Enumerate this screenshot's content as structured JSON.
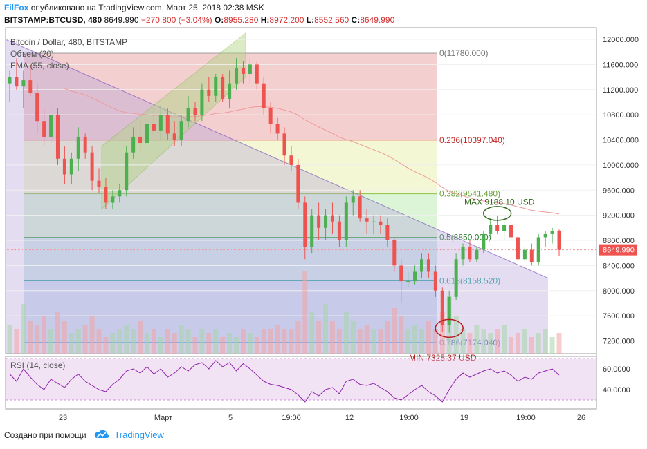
{
  "header": {
    "brand": "FilFox",
    "published": "опубликовано на TradingView.com, Март 25, 2018 02:38 MSK",
    "symbol": "BITSTAMP:BTCUSD, 480",
    "last": "8649.990",
    "change": "−270.800 (−3.04%)",
    "o_label": "O:",
    "o_value": "8955.280",
    "h_label": "H:",
    "h_value": "8972.200",
    "l_label": "L:",
    "l_value": "8552.560",
    "c_label": "C:",
    "c_value": "8649.990"
  },
  "legend": {
    "title": "Bitcoin / Dollar, 480, BITSTAMP",
    "volume": "Объем (20)",
    "ema": "EMA (55, close)",
    "rsi": "RSI (14, close)"
  },
  "footer": {
    "created_with": "Создано при помощи",
    "brand": "TradingView"
  },
  "colors": {
    "up": "#26a69a",
    "up_candle": "#4caf50",
    "down": "#ef5350",
    "accent": "#2196f3",
    "price_tag": "#ef5350"
  },
  "chart_data": {
    "type": "candlestick",
    "price_axis": {
      "ticks": [
        7200,
        7600,
        8000,
        8400,
        8800,
        9200,
        9600,
        10000,
        10400,
        10800,
        11200,
        11600,
        12000
      ],
      "tick_labels": [
        "7200.000",
        "7600.000",
        "8000.000",
        "8400.000",
        "8800.000",
        "9200.000",
        "9600.000",
        "10000.000",
        "10400.000",
        "10800.000",
        "11200.000",
        "11600.000",
        "12000.000"
      ],
      "ylim": [
        7000,
        12200
      ],
      "current_price": 8649.99,
      "current_price_label": "8649.990"
    },
    "time_axis": {
      "tick_labels": [
        "23",
        "Март",
        "5",
        "19:00",
        "12",
        "19:00",
        "19",
        "19:00",
        "26"
      ]
    },
    "rsi_axis": {
      "tick_labels": [
        "60.0000",
        "40.0000"
      ],
      "band": [
        30,
        70
      ]
    },
    "fibonacci": [
      {
        "label": "0(11780.000)",
        "price": 11780
      },
      {
        "label": "0.236(10397.040)",
        "price": 10397.04
      },
      {
        "label": "0.382(9541.480)",
        "price": 9541.48
      },
      {
        "label": "0.5(8850.000)",
        "price": 8850
      },
      {
        "label": "0.618(8158.520)",
        "price": 8158.52
      },
      {
        "label": "0.786(7174.040)",
        "price": 7174.04
      }
    ],
    "annotations": [
      {
        "text": "MAX 9188.10 USD",
        "price": 9188.1
      },
      {
        "text": "MIN 7325.37 USD",
        "price": 7325.37
      }
    ],
    "candles": [
      [
        11300,
        11500,
        11000,
        11400
      ],
      [
        11400,
        11700,
        11200,
        11250
      ],
      [
        11250,
        11500,
        10900,
        11350
      ],
      [
        11350,
        11600,
        11100,
        11150
      ],
      [
        11150,
        11300,
        10500,
        10700
      ],
      [
        10700,
        10900,
        10300,
        10450
      ],
      [
        10450,
        10900,
        10300,
        10800
      ],
      [
        10800,
        10900,
        10000,
        10100
      ],
      [
        10100,
        10300,
        9700,
        9850
      ],
      [
        9850,
        10200,
        9700,
        10100
      ],
      [
        10100,
        10600,
        9900,
        10450
      ],
      [
        10450,
        10500,
        10100,
        10200
      ],
      [
        10200,
        10300,
        9600,
        9750
      ],
      [
        9750,
        9950,
        9550,
        9650
      ],
      [
        9650,
        9800,
        9300,
        9400
      ],
      [
        9400,
        9600,
        9300,
        9500
      ],
      [
        9500,
        9700,
        9400,
        9600
      ],
      [
        9600,
        10300,
        9500,
        10200
      ],
      [
        10200,
        10600,
        10100,
        10450
      ],
      [
        10450,
        10700,
        10200,
        10350
      ],
      [
        10350,
        10800,
        10200,
        10650
      ],
      [
        10650,
        10900,
        10500,
        10550
      ],
      [
        10550,
        10950,
        10400,
        10800
      ],
      [
        10800,
        10900,
        10400,
        10500
      ],
      [
        10500,
        10700,
        10300,
        10400
      ],
      [
        10400,
        10800,
        10300,
        10700
      ],
      [
        10700,
        11100,
        10600,
        10900
      ],
      [
        10900,
        11000,
        10700,
        10800
      ],
      [
        10800,
        11300,
        10700,
        11200
      ],
      [
        11200,
        11400,
        11000,
        11100
      ],
      [
        11100,
        11450,
        11000,
        11400
      ],
      [
        11400,
        11450,
        11000,
        11050
      ],
      [
        11050,
        11500,
        10900,
        11300
      ],
      [
        11300,
        11700,
        11200,
        11550
      ],
      [
        11550,
        11650,
        11300,
        11450
      ],
      [
        11450,
        11700,
        11300,
        11600
      ],
      [
        11600,
        11650,
        11200,
        11300
      ],
      [
        11300,
        11400,
        10800,
        10900
      ],
      [
        10900,
        11000,
        10500,
        10650
      ],
      [
        10650,
        10750,
        10400,
        10500
      ],
      [
        10500,
        10600,
        10000,
        10150
      ],
      [
        10150,
        10300,
        9900,
        10000
      ],
      [
        10000,
        10100,
        9300,
        9400
      ],
      [
        9400,
        9500,
        8500,
        8700
      ],
      [
        8700,
        9300,
        8600,
        9200
      ],
      [
        9200,
        9400,
        8800,
        9000
      ],
      [
        9000,
        9300,
        8800,
        9200
      ],
      [
        9200,
        9400,
        8900,
        9100
      ],
      [
        9100,
        9200,
        8700,
        8800
      ],
      [
        8800,
        9500,
        8700,
        9400
      ],
      [
        9400,
        9600,
        9200,
        9500
      ],
      [
        9500,
        9600,
        9100,
        9150
      ],
      [
        9150,
        9300,
        8900,
        9100
      ],
      [
        9100,
        9200,
        8900,
        9100
      ],
      [
        9100,
        9200,
        8900,
        9050
      ],
      [
        9050,
        9150,
        8700,
        8800
      ],
      [
        8800,
        8850,
        8300,
        8400
      ],
      [
        8400,
        8500,
        7800,
        8150
      ],
      [
        8150,
        8300,
        8050,
        8150
      ],
      [
        8150,
        8400,
        8100,
        8300
      ],
      [
        8300,
        8600,
        8200,
        8500
      ],
      [
        8500,
        8600,
        8200,
        8300
      ],
      [
        8300,
        8400,
        7900,
        8000
      ],
      [
        8000,
        8050,
        7350,
        7450
      ],
      [
        7450,
        8000,
        7330,
        7900
      ],
      [
        7900,
        8600,
        7850,
        8500
      ],
      [
        8500,
        8750,
        8400,
        8700
      ],
      [
        8700,
        8800,
        8450,
        8500
      ],
      [
        8500,
        8700,
        8450,
        8650
      ],
      [
        8650,
        8950,
        8600,
        8900
      ],
      [
        8900,
        9150,
        8850,
        9050
      ],
      [
        9050,
        9190,
        8900,
        8950
      ],
      [
        8950,
        9100,
        8800,
        9050
      ],
      [
        9050,
        9150,
        8750,
        8850
      ],
      [
        8850,
        8900,
        8450,
        8500
      ],
      [
        8500,
        8700,
        8450,
        8650
      ],
      [
        8650,
        8750,
        8400,
        8450
      ],
      [
        8450,
        8900,
        8400,
        8850
      ],
      [
        8850,
        8950,
        8700,
        8900
      ],
      [
        8900,
        9000,
        8750,
        8950
      ],
      [
        8955.28,
        8972.2,
        8552.56,
        8649.99
      ]
    ],
    "volume": [
      0.35,
      0.3,
      0.6,
      0.4,
      0.35,
      0.45,
      0.3,
      0.5,
      0.4,
      0.25,
      0.3,
      0.35,
      0.45,
      0.3,
      0.2,
      0.25,
      0.3,
      0.35,
      0.3,
      0.4,
      0.25,
      0.3,
      0.2,
      0.3,
      0.25,
      0.35,
      0.3,
      0.2,
      0.3,
      0.25,
      0.3,
      0.2,
      0.25,
      0.2,
      0.3,
      0.25,
      0.2,
      0.3,
      0.3,
      0.35,
      0.3,
      0.3,
      0.4,
      1.0,
      0.5,
      0.4,
      0.6,
      0.4,
      0.3,
      0.5,
      0.4,
      0.3,
      0.35,
      0.3,
      0.3,
      0.4,
      0.55,
      0.45,
      0.3,
      0.35,
      0.3,
      0.4,
      0.3,
      0.5,
      0.7,
      0.45,
      0.3,
      0.25,
      0.35,
      0.3,
      0.25,
      0.3,
      0.35,
      0.2,
      0.25,
      0.3,
      0.2,
      0.25,
      0.3,
      0.2,
      0.25
    ],
    "rsi": [
      55,
      48,
      60,
      52,
      45,
      40,
      50,
      46,
      42,
      50,
      55,
      48,
      44,
      40,
      38,
      45,
      50,
      58,
      60,
      56,
      62,
      55,
      60,
      52,
      56,
      62,
      58,
      64,
      66,
      60,
      68,
      62,
      66,
      58,
      65,
      60,
      54,
      48,
      45,
      44,
      42,
      40,
      35,
      28,
      38,
      34,
      40,
      42,
      36,
      48,
      50,
      45,
      44,
      46,
      42,
      38,
      32,
      30,
      35,
      40,
      44,
      38,
      34,
      28,
      40,
      50,
      56,
      52,
      55,
      58,
      60,
      56,
      58,
      54,
      48,
      52,
      50,
      56,
      58,
      60,
      54
    ]
  }
}
